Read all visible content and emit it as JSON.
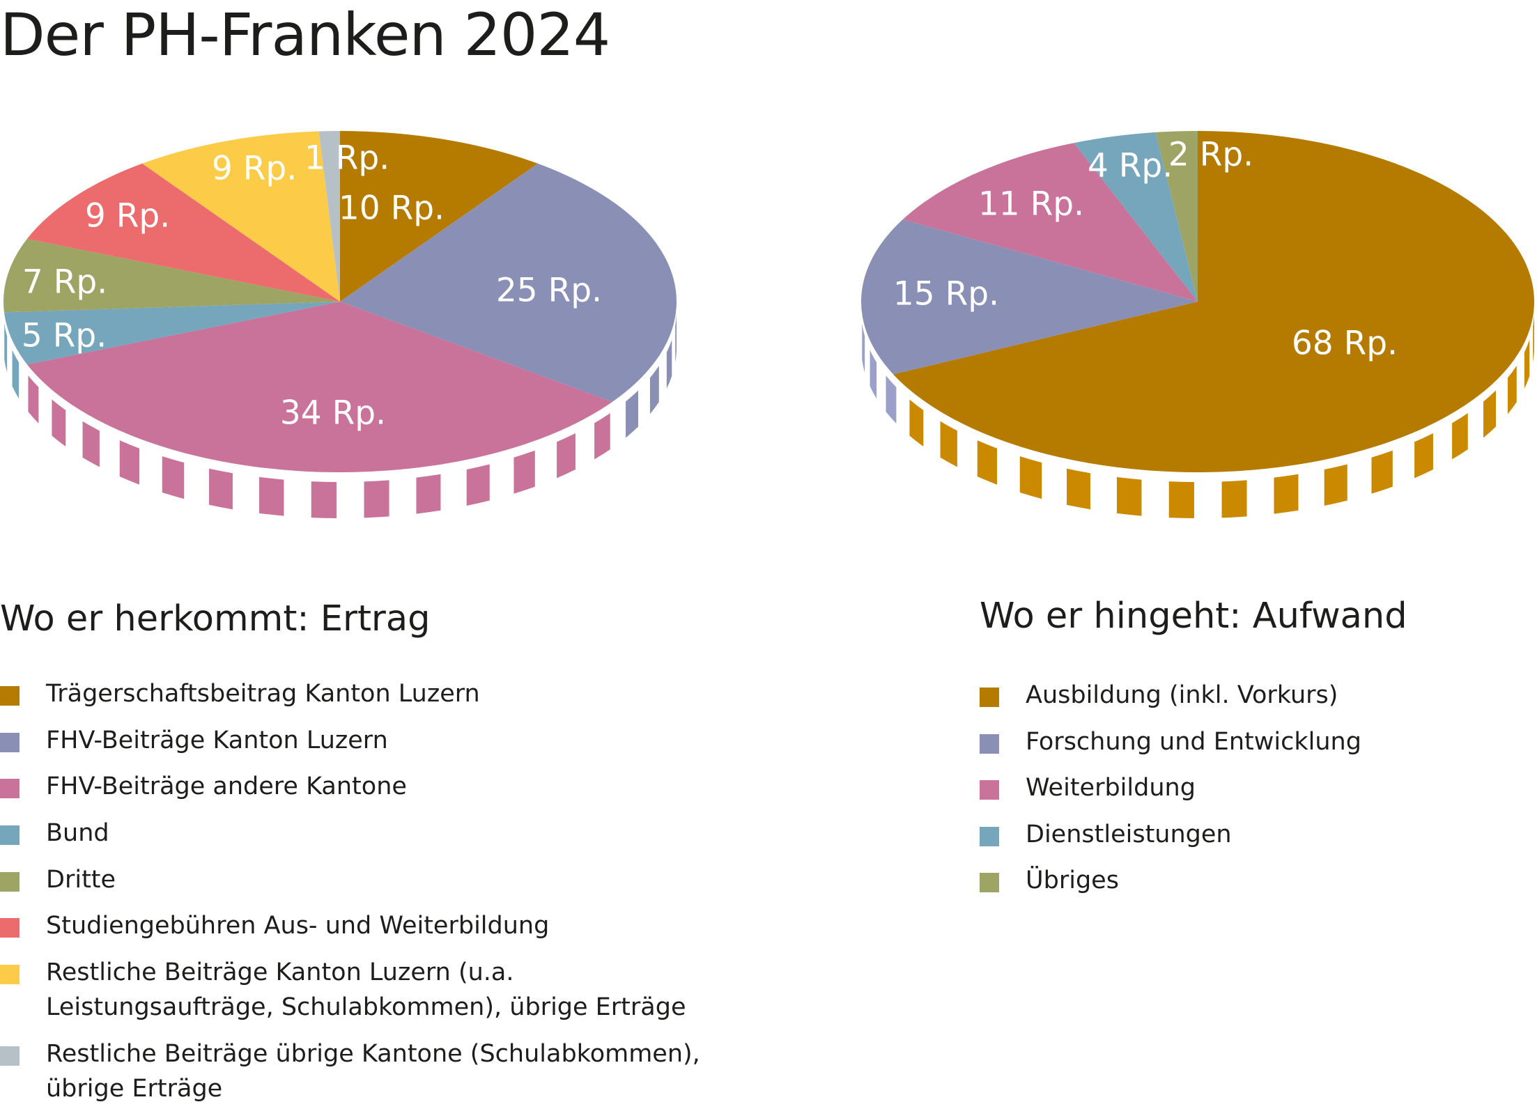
{
  "title": "Der PH-Franken 2024",
  "chart_data": [
    {
      "type": "pie",
      "title": "Wo er herkommt: Ertrag",
      "unit": "Rp.",
      "slices": [
        {
          "label": "Trägerschaftsbeitrag Kanton Luzern",
          "value": 10,
          "value_label": "10 Rp.",
          "color": "#b57a00"
        },
        {
          "label": "FHV-Beiträge Kanton Luzern",
          "value": 25,
          "value_label": "25 Rp.",
          "color": "#8a8fb5"
        },
        {
          "label": "FHV-Beiträge andere Kantone",
          "value": 34,
          "value_label": "34 Rp.",
          "color": "#c9729a"
        },
        {
          "label": "Bund",
          "value": 5,
          "value_label": "5 Rp.",
          "color": "#75a6bb"
        },
        {
          "label": "Dritte",
          "value": 7,
          "value_label": "7 Rp.",
          "color": "#9ea464"
        },
        {
          "label": "Studiengebühren Aus- und Weiterbildung",
          "value": 9,
          "value_label": "9 Rp.",
          "color": "#ec6b6c"
        },
        {
          "label": "Restliche Beiträge Kanton Luzern (u.a. Leistungsaufträge, Schulabkommen), übrige Erträge",
          "value": 9,
          "value_label": "9 Rp.",
          "color": "#fccc48"
        },
        {
          "label": "Restliche Beiträge übrige Kantone (Schulabkommen), übrige Erträge",
          "value": 1,
          "value_label": "1 Rp.",
          "color": "#b6c1c7"
        }
      ]
    },
    {
      "type": "pie",
      "title": "Wo er hingeht: Aufwand",
      "unit": "Rp.",
      "slices": [
        {
          "label": "Ausbildung (inkl. Vorkurs)",
          "value": 68,
          "value_label": "68 Rp.",
          "color": "#b57a00"
        },
        {
          "label": "Forschung und Entwicklung",
          "value": 15,
          "value_label": "15 Rp.",
          "color": "#8a8fb5"
        },
        {
          "label": "Weiterbildung",
          "value": 11,
          "value_label": "11 Rp.",
          "color": "#c9729a"
        },
        {
          "label": "Dienstleistungen",
          "value": 4,
          "value_label": "4 Rp.",
          "color": "#75a6bb"
        },
        {
          "label": "Übriges",
          "value": 2,
          "value_label": "2 Rp.",
          "color": "#9ea464"
        }
      ]
    }
  ]
}
